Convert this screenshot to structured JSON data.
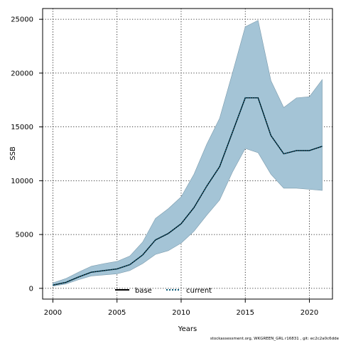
{
  "chart_data": {
    "type": "line",
    "title": "",
    "xlabel": "Years",
    "ylabel": "SSB",
    "xlim": [
      1999.2,
      2021.8
    ],
    "ylim": [
      -1000,
      26000
    ],
    "x_ticks": [
      2000,
      2005,
      2010,
      2015,
      2020
    ],
    "y_ticks": [
      0,
      5000,
      10000,
      15000,
      20000,
      25000
    ],
    "grid": true,
    "legend_position": "bottom-center",
    "x": [
      2000,
      2001,
      2002,
      2003,
      2004,
      2005,
      2006,
      2007,
      2008,
      2009,
      2010,
      2011,
      2012,
      2013,
      2014,
      2015,
      2016,
      2017,
      2018,
      2019,
      2020,
      2021
    ],
    "series": [
      {
        "name": "base",
        "style": "solid",
        "color": "#000000",
        "values": [
          300,
          550,
          1050,
          1500,
          1650,
          1800,
          2200,
          3100,
          4500,
          5100,
          6000,
          7500,
          9500,
          11300,
          14500,
          17700,
          17700,
          14200,
          12500,
          12800,
          12800,
          13200
        ]
      },
      {
        "name": "current",
        "style": "dotted",
        "color": "#0a5a78",
        "values": [
          300,
          550,
          1050,
          1500,
          1650,
          1800,
          2200,
          3100,
          4500,
          5100,
          6000,
          7500,
          9500,
          11300,
          14500,
          17700,
          17700,
          14200,
          12500,
          12800,
          12800,
          13200
        ]
      }
    ],
    "band": {
      "color": "#a4c4d6",
      "edge_color": "#7a9aac",
      "lower": [
        200,
        400,
        800,
        1150,
        1250,
        1350,
        1650,
        2300,
        3150,
        3500,
        4200,
        5300,
        6800,
        8200,
        10800,
        13000,
        12600,
        10600,
        9300,
        9300,
        9200,
        9100
      ],
      "upper": [
        500,
        900,
        1500,
        2050,
        2300,
        2500,
        3000,
        4300,
        6500,
        7400,
        8500,
        10600,
        13400,
        15800,
        20000,
        24300,
        24900,
        19300,
        16800,
        17700,
        17800,
        19400
      ]
    }
  },
  "footer": "stockassessment.org, WKGREEN_GRL r16831 , git: ec2c2a0c6dde"
}
